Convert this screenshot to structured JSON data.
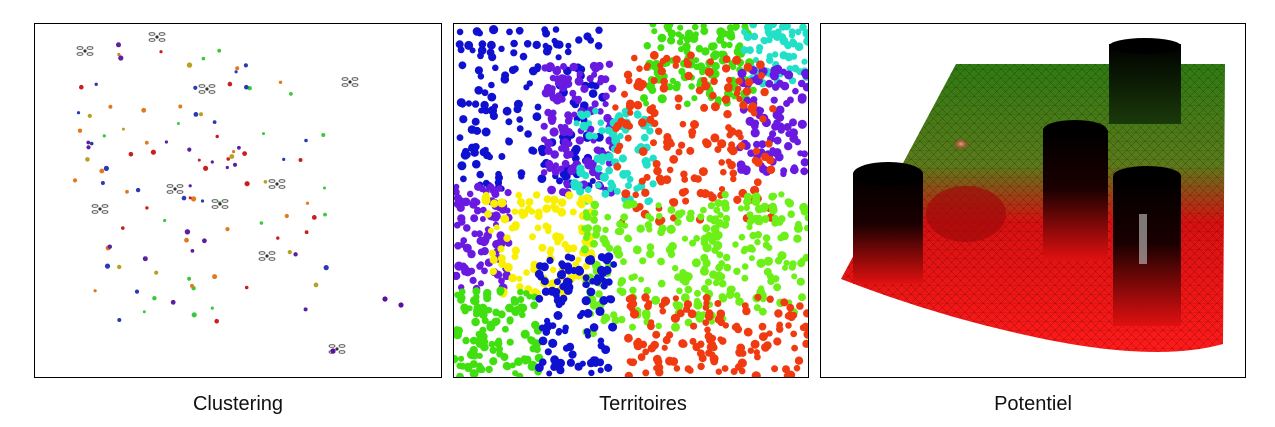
{
  "captions": {
    "clustering": "Clustering",
    "territoires": "Territoires",
    "potentiel": "Potentiel"
  },
  "colors": {
    "blue": "#1010d0",
    "purple": "#6a1ae0",
    "cyan": "#20e0c8",
    "red_orange": "#f03a10",
    "green": "#40e010",
    "light_green": "#6cf018",
    "yellow": "#f8f000",
    "surface_red": "#e01010",
    "surface_green": "#3a8a1a"
  }
}
